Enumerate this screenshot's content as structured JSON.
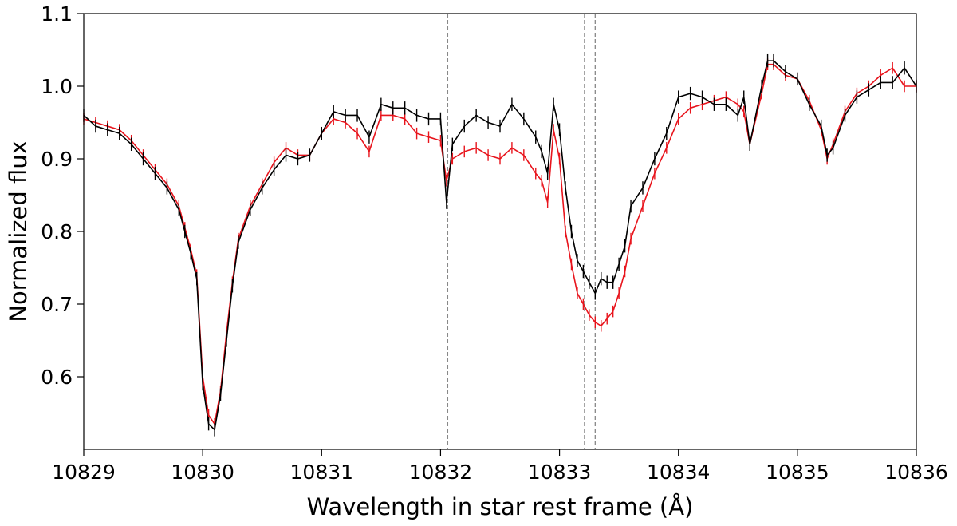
{
  "chart_data": {
    "type": "line",
    "title": "",
    "xlabel": "Wavelength in star rest frame (Å)",
    "ylabel": "Normalized flux",
    "xlim": [
      10829,
      10836
    ],
    "ylim": [
      0.5,
      1.1
    ],
    "xticks": [
      10829,
      10830,
      10831,
      10832,
      10833,
      10834,
      10835,
      10836
    ],
    "xtick_labels": [
      "10829",
      "10830",
      "10831",
      "10832",
      "10833",
      "10834",
      "10835",
      "10836"
    ],
    "yticks": [
      0.6,
      0.7,
      0.8,
      0.9,
      1.0,
      1.1
    ],
    "ytick_labels": [
      "0.6",
      "0.7",
      "0.8",
      "0.9",
      "1.0",
      "1.1"
    ],
    "grid": false,
    "vlines": [
      10832.06,
      10833.21,
      10833.3
    ],
    "vline_color": "#888888",
    "series": [
      {
        "color": "#e8141c",
        "error": 0.008,
        "points": [
          [
            10829.0,
            0.955
          ],
          [
            10829.1,
            0.95
          ],
          [
            10829.2,
            0.945
          ],
          [
            10829.3,
            0.94
          ],
          [
            10829.4,
            0.925
          ],
          [
            10829.5,
            0.905
          ],
          [
            10829.6,
            0.885
          ],
          [
            10829.7,
            0.865
          ],
          [
            10829.8,
            0.835
          ],
          [
            10829.85,
            0.805
          ],
          [
            10829.9,
            0.775
          ],
          [
            10829.95,
            0.74
          ],
          [
            10830.0,
            0.6
          ],
          [
            10830.05,
            0.547
          ],
          [
            10830.1,
            0.535
          ],
          [
            10830.15,
            0.58
          ],
          [
            10830.2,
            0.66
          ],
          [
            10830.25,
            0.73
          ],
          [
            10830.3,
            0.79
          ],
          [
            10830.4,
            0.835
          ],
          [
            10830.5,
            0.865
          ],
          [
            10830.6,
            0.895
          ],
          [
            10830.7,
            0.915
          ],
          [
            10830.8,
            0.905
          ],
          [
            10830.9,
            0.905
          ],
          [
            10831.0,
            0.935
          ],
          [
            10831.1,
            0.955
          ],
          [
            10831.2,
            0.95
          ],
          [
            10831.3,
            0.935
          ],
          [
            10831.4,
            0.91
          ],
          [
            10831.5,
            0.96
          ],
          [
            10831.6,
            0.96
          ],
          [
            10831.7,
            0.955
          ],
          [
            10831.8,
            0.935
          ],
          [
            10831.9,
            0.93
          ],
          [
            10832.0,
            0.925
          ],
          [
            10832.05,
            0.87
          ],
          [
            10832.1,
            0.9
          ],
          [
            10832.2,
            0.91
          ],
          [
            10832.3,
            0.915
          ],
          [
            10832.4,
            0.905
          ],
          [
            10832.5,
            0.9
          ],
          [
            10832.6,
            0.915
          ],
          [
            10832.7,
            0.905
          ],
          [
            10832.8,
            0.88
          ],
          [
            10832.85,
            0.87
          ],
          [
            10832.9,
            0.84
          ],
          [
            10832.95,
            0.94
          ],
          [
            10833.0,
            0.9
          ],
          [
            10833.05,
            0.8
          ],
          [
            10833.1,
            0.755
          ],
          [
            10833.15,
            0.715
          ],
          [
            10833.2,
            0.7
          ],
          [
            10833.25,
            0.685
          ],
          [
            10833.3,
            0.675
          ],
          [
            10833.35,
            0.67
          ],
          [
            10833.4,
            0.68
          ],
          [
            10833.45,
            0.69
          ],
          [
            10833.5,
            0.715
          ],
          [
            10833.55,
            0.745
          ],
          [
            10833.6,
            0.79
          ],
          [
            10833.7,
            0.835
          ],
          [
            10833.8,
            0.88
          ],
          [
            10833.9,
            0.915
          ],
          [
            10834.0,
            0.955
          ],
          [
            10834.1,
            0.97
          ],
          [
            10834.2,
            0.975
          ],
          [
            10834.3,
            0.98
          ],
          [
            10834.4,
            0.985
          ],
          [
            10834.5,
            0.975
          ],
          [
            10834.55,
            0.965
          ],
          [
            10834.6,
            0.92
          ],
          [
            10834.7,
            0.99
          ],
          [
            10834.75,
            1.03
          ],
          [
            10834.8,
            1.03
          ],
          [
            10834.9,
            1.015
          ],
          [
            10835.0,
            1.01
          ],
          [
            10835.1,
            0.98
          ],
          [
            10835.2,
            0.94
          ],
          [
            10835.25,
            0.9
          ],
          [
            10835.3,
            0.92
          ],
          [
            10835.4,
            0.965
          ],
          [
            10835.5,
            0.99
          ],
          [
            10835.6,
            1.0
          ],
          [
            10835.7,
            1.015
          ],
          [
            10835.8,
            1.025
          ],
          [
            10835.9,
            1.0
          ],
          [
            10836.0,
            1.0
          ]
        ]
      },
      {
        "color": "#000000",
        "error": 0.009,
        "points": [
          [
            10829.0,
            0.96
          ],
          [
            10829.1,
            0.945
          ],
          [
            10829.2,
            0.94
          ],
          [
            10829.3,
            0.935
          ],
          [
            10829.4,
            0.92
          ],
          [
            10829.5,
            0.9
          ],
          [
            10829.6,
            0.88
          ],
          [
            10829.7,
            0.86
          ],
          [
            10829.8,
            0.83
          ],
          [
            10829.85,
            0.8
          ],
          [
            10829.9,
            0.77
          ],
          [
            10829.95,
            0.735
          ],
          [
            10830.0,
            0.59
          ],
          [
            10830.05,
            0.535
          ],
          [
            10830.1,
            0.527
          ],
          [
            10830.15,
            0.575
          ],
          [
            10830.2,
            0.65
          ],
          [
            10830.25,
            0.725
          ],
          [
            10830.3,
            0.785
          ],
          [
            10830.4,
            0.83
          ],
          [
            10830.5,
            0.86
          ],
          [
            10830.6,
            0.885
          ],
          [
            10830.7,
            0.905
          ],
          [
            10830.8,
            0.9
          ],
          [
            10830.9,
            0.905
          ],
          [
            10831.0,
            0.935
          ],
          [
            10831.1,
            0.965
          ],
          [
            10831.2,
            0.96
          ],
          [
            10831.3,
            0.96
          ],
          [
            10831.4,
            0.93
          ],
          [
            10831.5,
            0.975
          ],
          [
            10831.6,
            0.97
          ],
          [
            10831.7,
            0.97
          ],
          [
            10831.8,
            0.96
          ],
          [
            10831.9,
            0.955
          ],
          [
            10832.0,
            0.955
          ],
          [
            10832.05,
            0.84
          ],
          [
            10832.1,
            0.92
          ],
          [
            10832.2,
            0.945
          ],
          [
            10832.3,
            0.96
          ],
          [
            10832.4,
            0.95
          ],
          [
            10832.5,
            0.945
          ],
          [
            10832.6,
            0.975
          ],
          [
            10832.7,
            0.955
          ],
          [
            10832.8,
            0.93
          ],
          [
            10832.85,
            0.91
          ],
          [
            10832.9,
            0.88
          ],
          [
            10832.95,
            0.975
          ],
          [
            10833.0,
            0.94
          ],
          [
            10833.05,
            0.86
          ],
          [
            10833.1,
            0.8
          ],
          [
            10833.15,
            0.76
          ],
          [
            10833.2,
            0.745
          ],
          [
            10833.25,
            0.73
          ],
          [
            10833.3,
            0.715
          ],
          [
            10833.35,
            0.735
          ],
          [
            10833.4,
            0.73
          ],
          [
            10833.45,
            0.73
          ],
          [
            10833.5,
            0.755
          ],
          [
            10833.55,
            0.78
          ],
          [
            10833.6,
            0.835
          ],
          [
            10833.7,
            0.86
          ],
          [
            10833.8,
            0.9
          ],
          [
            10833.9,
            0.935
          ],
          [
            10834.0,
            0.985
          ],
          [
            10834.1,
            0.99
          ],
          [
            10834.2,
            0.985
          ],
          [
            10834.3,
            0.975
          ],
          [
            10834.4,
            0.975
          ],
          [
            10834.5,
            0.96
          ],
          [
            10834.55,
            0.985
          ],
          [
            10834.6,
            0.92
          ],
          [
            10834.7,
            1.0
          ],
          [
            10834.75,
            1.035
          ],
          [
            10834.8,
            1.035
          ],
          [
            10834.9,
            1.02
          ],
          [
            10835.0,
            1.01
          ],
          [
            10835.1,
            0.975
          ],
          [
            10835.2,
            0.945
          ],
          [
            10835.25,
            0.905
          ],
          [
            10835.3,
            0.915
          ],
          [
            10835.4,
            0.96
          ],
          [
            10835.5,
            0.985
          ],
          [
            10835.6,
            0.995
          ],
          [
            10835.7,
            1.005
          ],
          [
            10835.8,
            1.005
          ],
          [
            10835.9,
            1.025
          ],
          [
            10836.0,
            1.0
          ]
        ]
      }
    ]
  }
}
